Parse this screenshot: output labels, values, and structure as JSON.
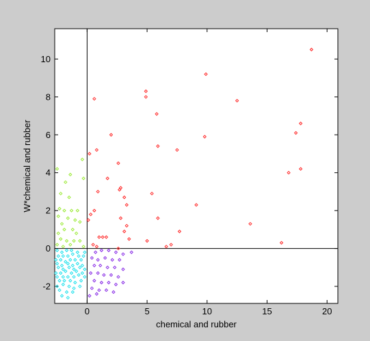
{
  "chart_data": {
    "type": "scatter",
    "title": "",
    "xlabel": "chemical and rubber",
    "ylabel": "W*chemical and rubber",
    "xlim": [
      -2.7,
      20.9
    ],
    "ylim": [
      -2.9,
      11.6
    ],
    "xticks": [
      0,
      5,
      10,
      15,
      20
    ],
    "yticks": [
      -2,
      0,
      2,
      4,
      6,
      8,
      10
    ],
    "grid": false,
    "reference_lines": {
      "x": 0,
      "y": 0
    },
    "colors": {
      "high_high": "#ff2a2a",
      "low_high": "#9dea3a",
      "low_low": "#22e1ec",
      "high_low": "#8a2fe6"
    },
    "series": [
      {
        "key": "high_high",
        "points": [
          [
            18.7,
            10.5
          ],
          [
            9.9,
            9.2
          ],
          [
            4.9,
            8.3
          ],
          [
            4.9,
            8.0
          ],
          [
            0.6,
            7.9
          ],
          [
            12.5,
            7.8
          ],
          [
            5.8,
            7.1
          ],
          [
            17.8,
            6.6
          ],
          [
            17.4,
            6.1
          ],
          [
            2.0,
            6.0
          ],
          [
            9.8,
            5.9
          ],
          [
            5.9,
            5.4
          ],
          [
            0.8,
            5.2
          ],
          [
            7.5,
            5.2
          ],
          [
            0.2,
            5.0
          ],
          [
            2.6,
            4.5
          ],
          [
            17.8,
            4.2
          ],
          [
            16.8,
            4.0
          ],
          [
            1.7,
            3.7
          ],
          [
            0.9,
            3.0
          ],
          [
            2.8,
            3.2
          ],
          [
            2.7,
            3.1
          ],
          [
            3.1,
            2.7
          ],
          [
            5.4,
            2.9
          ],
          [
            3.3,
            2.3
          ],
          [
            9.1,
            2.3
          ],
          [
            0.6,
            2.0
          ],
          [
            0.3,
            1.8
          ],
          [
            2.8,
            1.6
          ],
          [
            5.9,
            1.6
          ],
          [
            0.1,
            1.5
          ],
          [
            3.3,
            1.2
          ],
          [
            13.6,
            1.3
          ],
          [
            3.1,
            0.9
          ],
          [
            7.7,
            0.9
          ],
          [
            1.0,
            0.6
          ],
          [
            1.3,
            0.6
          ],
          [
            1.6,
            0.6
          ],
          [
            3.5,
            0.5
          ],
          [
            5.0,
            0.4
          ],
          [
            16.2,
            0.3
          ],
          [
            0.5,
            0.2
          ],
          [
            7.0,
            0.2
          ],
          [
            0.8,
            0.1
          ],
          [
            6.6,
            0.1
          ],
          [
            2.6,
            0.0
          ]
        ]
      },
      {
        "key": "low_high",
        "points": [
          [
            -2.5,
            4.2
          ],
          [
            -0.4,
            4.7
          ],
          [
            -0.3,
            3.7
          ],
          [
            -1.4,
            3.9
          ],
          [
            -1.8,
            3.5
          ],
          [
            -2.2,
            2.9
          ],
          [
            -1.5,
            2.7
          ],
          [
            -2.3,
            2.1
          ],
          [
            -1.9,
            2.0
          ],
          [
            -1.3,
            2.0
          ],
          [
            -0.8,
            2.0
          ],
          [
            -2.4,
            1.7
          ],
          [
            -1.6,
            1.6
          ],
          [
            -1.0,
            1.5
          ],
          [
            -2.1,
            1.3
          ],
          [
            -0.6,
            1.4
          ],
          [
            -1.9,
            1.0
          ],
          [
            -1.2,
            1.0
          ],
          [
            -2.4,
            0.8
          ],
          [
            -0.9,
            0.8
          ],
          [
            -2.2,
            0.5
          ],
          [
            -1.7,
            0.4
          ],
          [
            -1.1,
            0.4
          ],
          [
            -0.6,
            0.4
          ],
          [
            -2.5,
            0.2
          ],
          [
            -2.0,
            0.1
          ],
          [
            -1.4,
            0.2
          ],
          [
            -0.3,
            0.1
          ]
        ]
      },
      {
        "key": "low_low",
        "points": [
          [
            -2.5,
            -0.1
          ],
          [
            -2.1,
            -0.2
          ],
          [
            -1.7,
            -0.1
          ],
          [
            -1.3,
            -0.1
          ],
          [
            -0.8,
            -0.2
          ],
          [
            -0.2,
            -0.2
          ],
          [
            -2.4,
            -0.4
          ],
          [
            -2.0,
            -0.4
          ],
          [
            -1.6,
            -0.4
          ],
          [
            -1.2,
            -0.3
          ],
          [
            -0.7,
            -0.4
          ],
          [
            -0.3,
            -0.4
          ],
          [
            -2.6,
            -0.6
          ],
          [
            -2.2,
            -0.6
          ],
          [
            -1.8,
            -0.7
          ],
          [
            -1.4,
            -0.6
          ],
          [
            -1.0,
            -0.6
          ],
          [
            -0.5,
            -0.6
          ],
          [
            -2.5,
            -0.8
          ],
          [
            -2.1,
            -0.9
          ],
          [
            -1.6,
            -0.8
          ],
          [
            -1.2,
            -0.9
          ],
          [
            -0.8,
            -0.8
          ],
          [
            -0.4,
            -0.9
          ],
          [
            -2.4,
            -1.0
          ],
          [
            -2.0,
            -1.1
          ],
          [
            -1.5,
            -1.0
          ],
          [
            -1.1,
            -1.1
          ],
          [
            -0.6,
            -1.0
          ],
          [
            -0.2,
            -1.1
          ],
          [
            -2.6,
            -1.3
          ],
          [
            -2.2,
            -1.3
          ],
          [
            -1.8,
            -1.2
          ],
          [
            -1.3,
            -1.3
          ],
          [
            -0.9,
            -1.2
          ],
          [
            -0.4,
            -1.3
          ],
          [
            -2.5,
            -1.5
          ],
          [
            -2.0,
            -1.5
          ],
          [
            -1.6,
            -1.5
          ],
          [
            -1.1,
            -1.5
          ],
          [
            -0.7,
            -1.4
          ],
          [
            -0.2,
            -1.5
          ],
          [
            -2.3,
            -1.7
          ],
          [
            -1.9,
            -1.7
          ],
          [
            -1.4,
            -1.7
          ],
          [
            -1.0,
            -1.8
          ],
          [
            -0.5,
            -1.7
          ],
          [
            -2.5,
            -2.0
          ],
          [
            -2.0,
            -1.9
          ],
          [
            -1.5,
            -2.0
          ],
          [
            -1.1,
            -2.1
          ],
          [
            -0.6,
            -2.0
          ],
          [
            -2.3,
            -2.2
          ],
          [
            -1.7,
            -2.3
          ],
          [
            -1.2,
            -2.3
          ],
          [
            -2.1,
            -2.5
          ],
          [
            -1.6,
            -2.6
          ]
        ]
      },
      {
        "key": "high_low",
        "points": [
          [
            0.7,
            -0.2
          ],
          [
            1.2,
            -0.1
          ],
          [
            1.8,
            -0.1
          ],
          [
            2.4,
            -0.2
          ],
          [
            3.0,
            -0.3
          ],
          [
            3.7,
            -0.2
          ],
          [
            0.4,
            -0.5
          ],
          [
            0.9,
            -0.6
          ],
          [
            1.5,
            -0.5
          ],
          [
            2.1,
            -0.6
          ],
          [
            2.7,
            -0.6
          ],
          [
            0.6,
            -0.9
          ],
          [
            1.1,
            -0.9
          ],
          [
            1.7,
            -1.0
          ],
          [
            2.3,
            -1.0
          ],
          [
            3.0,
            -1.1
          ],
          [
            0.3,
            -1.3
          ],
          [
            0.9,
            -1.3
          ],
          [
            1.4,
            -1.4
          ],
          [
            2.0,
            -1.4
          ],
          [
            2.6,
            -1.5
          ],
          [
            0.6,
            -1.7
          ],
          [
            1.2,
            -1.8
          ],
          [
            1.8,
            -1.8
          ],
          [
            2.4,
            -1.9
          ],
          [
            3.0,
            -1.8
          ],
          [
            0.4,
            -2.1
          ],
          [
            1.0,
            -2.2
          ],
          [
            1.6,
            -2.2
          ],
          [
            2.2,
            -2.3
          ],
          [
            0.2,
            -2.5
          ],
          [
            0.8,
            -2.4
          ]
        ]
      }
    ]
  }
}
